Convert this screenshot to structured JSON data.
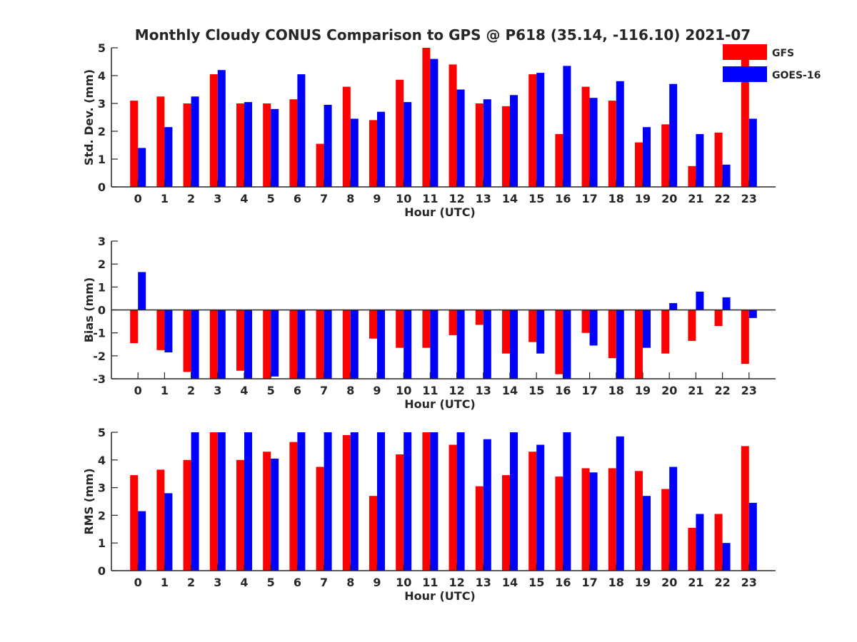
{
  "title": "Monthly Cloudy CONUS Comparison to GPS @ P618 (35.14, -116.10) 2021-07",
  "legend": [
    {
      "name": "GFS",
      "color": "#ff0000"
    },
    {
      "name": "GOES-16",
      "color": "#0000ff"
    }
  ],
  "chart_data": [
    {
      "type": "bar",
      "xlabel": "Hour (UTC)",
      "ylabel": "Std. Dev. (mm)",
      "ylim": [
        0,
        5
      ],
      "yticks": [
        0,
        1,
        2,
        3,
        4,
        5
      ],
      "categories": [
        "0",
        "1",
        "2",
        "3",
        "4",
        "5",
        "6",
        "7",
        "8",
        "9",
        "10",
        "11",
        "12",
        "13",
        "14",
        "15",
        "16",
        "17",
        "18",
        "19",
        "20",
        "21",
        "22",
        "23"
      ],
      "series": [
        {
          "name": "GFS",
          "color": "#ff0000",
          "values": [
            3.1,
            3.25,
            3.0,
            4.05,
            3.0,
            3.0,
            3.15,
            1.55,
            3.6,
            2.4,
            3.85,
            5.0,
            4.4,
            3.0,
            2.9,
            4.05,
            1.9,
            3.6,
            3.1,
            1.6,
            2.25,
            0.75,
            1.95,
            5.0
          ]
        },
        {
          "name": "GOES-16",
          "color": "#0000ff",
          "values": [
            1.4,
            2.15,
            3.25,
            4.2,
            3.05,
            2.8,
            4.05,
            2.95,
            2.45,
            2.7,
            3.05,
            4.6,
            3.5,
            3.15,
            3.3,
            4.1,
            4.35,
            3.2,
            3.8,
            2.15,
            3.7,
            1.9,
            0.8,
            2.45
          ]
        }
      ]
    },
    {
      "type": "bar",
      "xlabel": "Hour (UTC)",
      "ylabel": "Bias (mm)",
      "ylim": [
        -3,
        3
      ],
      "yticks": [
        -3,
        -2,
        -1,
        0,
        1,
        2,
        3
      ],
      "categories": [
        "0",
        "1",
        "2",
        "3",
        "4",
        "5",
        "6",
        "7",
        "8",
        "9",
        "10",
        "11",
        "12",
        "13",
        "14",
        "15",
        "16",
        "17",
        "18",
        "19",
        "20",
        "21",
        "22",
        "23"
      ],
      "series": [
        {
          "name": "GFS",
          "color": "#ff0000",
          "values": [
            -1.45,
            -1.75,
            -2.7,
            -3.0,
            -2.65,
            -3.0,
            -3.0,
            -3.0,
            -3.0,
            -1.25,
            -1.65,
            -1.65,
            -1.1,
            -0.65,
            -1.9,
            -1.4,
            -2.8,
            -1.0,
            -2.1,
            -3.0,
            -1.9,
            -1.35,
            -0.7,
            -2.35
          ]
        },
        {
          "name": "GOES-16",
          "color": "#0000ff",
          "values": [
            1.65,
            -1.85,
            -3.0,
            -3.0,
            -3.0,
            -2.9,
            -3.0,
            -3.0,
            -3.0,
            -3.0,
            -3.0,
            -3.0,
            -3.0,
            -3.0,
            -3.0,
            -1.9,
            -3.0,
            -1.55,
            -3.0,
            -1.65,
            0.3,
            0.8,
            0.55,
            -0.35
          ]
        }
      ]
    },
    {
      "type": "bar",
      "xlabel": "Hour (UTC)",
      "ylabel": "RMS (mm)",
      "ylim": [
        0,
        5
      ],
      "yticks": [
        0,
        1,
        2,
        3,
        4,
        5
      ],
      "categories": [
        "0",
        "1",
        "2",
        "3",
        "4",
        "5",
        "6",
        "7",
        "8",
        "9",
        "10",
        "11",
        "12",
        "13",
        "14",
        "15",
        "16",
        "17",
        "18",
        "19",
        "20",
        "21",
        "22",
        "23"
      ],
      "series": [
        {
          "name": "GFS",
          "color": "#ff0000",
          "values": [
            3.45,
            3.65,
            4.0,
            5.0,
            4.0,
            4.3,
            4.65,
            3.75,
            4.9,
            2.7,
            4.2,
            5.0,
            4.55,
            3.05,
            3.45,
            4.3,
            3.4,
            3.7,
            3.7,
            3.6,
            2.95,
            1.55,
            2.05,
            4.5
          ]
        },
        {
          "name": "GOES-16",
          "color": "#0000ff",
          "values": [
            2.15,
            2.8,
            5.0,
            5.0,
            5.0,
            4.05,
            5.0,
            5.0,
            5.0,
            5.0,
            5.0,
            5.0,
            5.0,
            4.75,
            5.0,
            4.55,
            5.0,
            3.55,
            4.85,
            2.7,
            3.75,
            2.05,
            1.0,
            2.45
          ]
        }
      ]
    }
  ]
}
